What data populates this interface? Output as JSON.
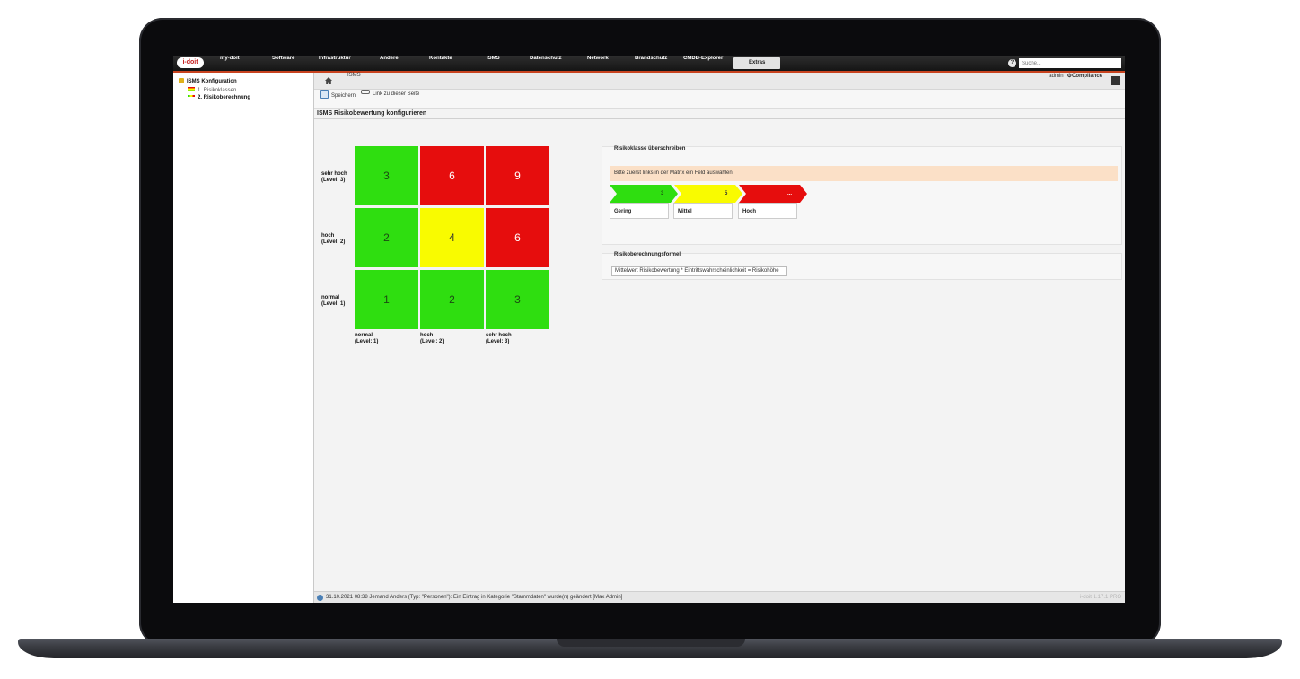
{
  "app": {
    "logo": "i-doit",
    "nav": [
      "my-doit",
      "Software",
      "Infrastruktur",
      "Andere",
      "Kontakte",
      "ISMS",
      "Datenschutz",
      "Network",
      "Brandschutz",
      "CMDB-Explorer",
      "Extras"
    ],
    "active_nav": "Extras",
    "search_placeholder": "Suche..."
  },
  "sidebar": {
    "root": "ISMS Konfiguration",
    "items": [
      {
        "label": "1. Risikoklassen",
        "selected": false
      },
      {
        "label": "2. Risikoberechnung",
        "selected": true
      }
    ]
  },
  "breadcrumb": {
    "item": "ISMS"
  },
  "user": {
    "name": "admin",
    "tenant": "Compliance"
  },
  "toolbar": {
    "save": "Speichern",
    "link": "Link zu dieser Seite"
  },
  "section_title": "ISMS Risikobewertung konfigurieren",
  "matrix": {
    "row_labels": [
      "sehr hoch\n(Level: 3)",
      "hoch\n(Level: 2)",
      "normal\n(Level: 1)"
    ],
    "col_labels": [
      "normal\n(Level: 1)",
      "hoch\n(Level: 2)",
      "sehr hoch\n(Level: 3)"
    ],
    "cells": [
      [
        {
          "v": "3",
          "c": "g"
        },
        {
          "v": "6",
          "c": "r"
        },
        {
          "v": "9",
          "c": "r"
        }
      ],
      [
        {
          "v": "2",
          "c": "g"
        },
        {
          "v": "4",
          "c": "y"
        },
        {
          "v": "6",
          "c": "r"
        }
      ],
      [
        {
          "v": "1",
          "c": "g"
        },
        {
          "v": "2",
          "c": "g"
        },
        {
          "v": "3",
          "c": "g"
        }
      ]
    ],
    "colors": {
      "green": "#2fde10",
      "yellow": "#f9fb00",
      "red": "#e60d0d"
    }
  },
  "risk_override": {
    "title": "Risikoklasse überschreiben",
    "hint": "Bitte zuerst links in der Matrix ein Feld auswählen.",
    "classes": [
      {
        "label": "Gering",
        "max": "3",
        "color": "#2fde10"
      },
      {
        "label": "Mittel",
        "max": "5",
        "color": "#f9fb00"
      },
      {
        "label": "Hoch",
        "max": "...",
        "color": "#e60d0d"
      }
    ]
  },
  "formula": {
    "title": "Risikoberechnungsformel",
    "value": "Mittelwert Risikobewertung * Eintrittswahrscheinlichkeit = Risikohöhe"
  },
  "status": {
    "text": "31.10.2021 08:38 Jemand Anders (Typ: \"Personen\"): Ein Eintrag in Kategorie \"Stammdaten\" wurde(n) geändert [Max Admin]",
    "version": "i-doit 1.17.1 PRO"
  }
}
